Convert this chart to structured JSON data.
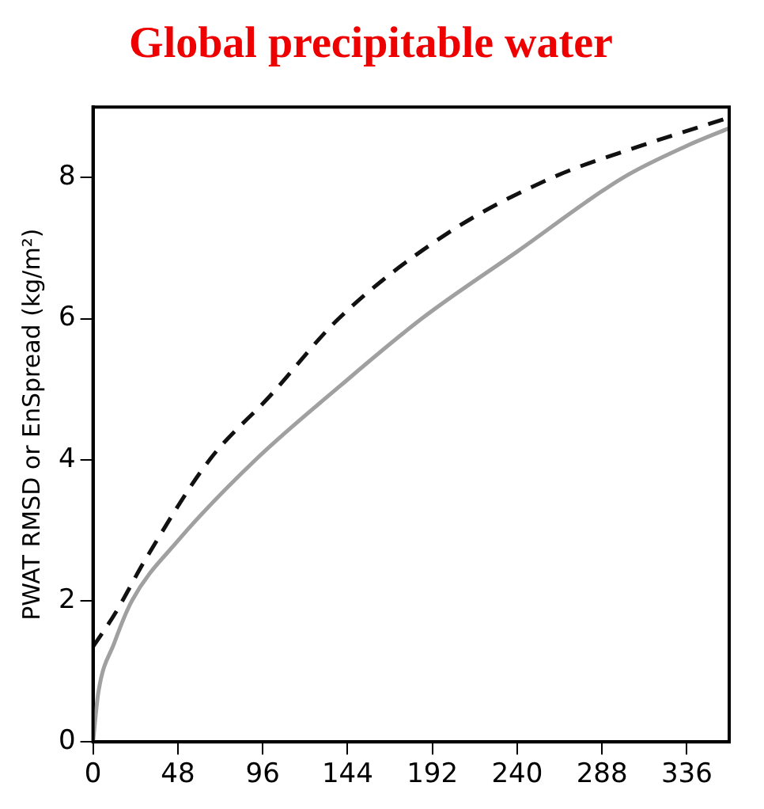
{
  "chart_data": {
    "type": "line",
    "title": "Global precipitable water",
    "ylabel": "PWAT RMSD or EnSpread (kg/m²)",
    "xlim": [
      0,
      360
    ],
    "ylim": [
      0,
      9
    ],
    "xticks": [
      0,
      48,
      96,
      144,
      192,
      240,
      288,
      336
    ],
    "yticks": [
      0,
      2,
      4,
      6,
      8
    ],
    "grid": false,
    "legend": false,
    "marker": "none",
    "series": [
      {
        "color": "#a0a0a0",
        "line_style": "solid",
        "x": [
          0,
          3,
          12,
          22,
          48,
          92,
          140,
          186,
          240,
          300,
          336,
          360
        ],
        "values": [
          0,
          0.7,
          1.4,
          2,
          2.85,
          4,
          5.05,
          6,
          6.95,
          8,
          8.45,
          8.7
        ]
      },
      {
        "color": "#111111",
        "line_style": "dashed",
        "x": [
          0,
          12,
          30,
          66,
          100,
          139,
          200,
          260,
          310,
          360
        ],
        "values": [
          1.35,
          1.8,
          2.6,
          4,
          4.9,
          6,
          7.2,
          8,
          8.45,
          8.85
        ]
      }
    ]
  }
}
